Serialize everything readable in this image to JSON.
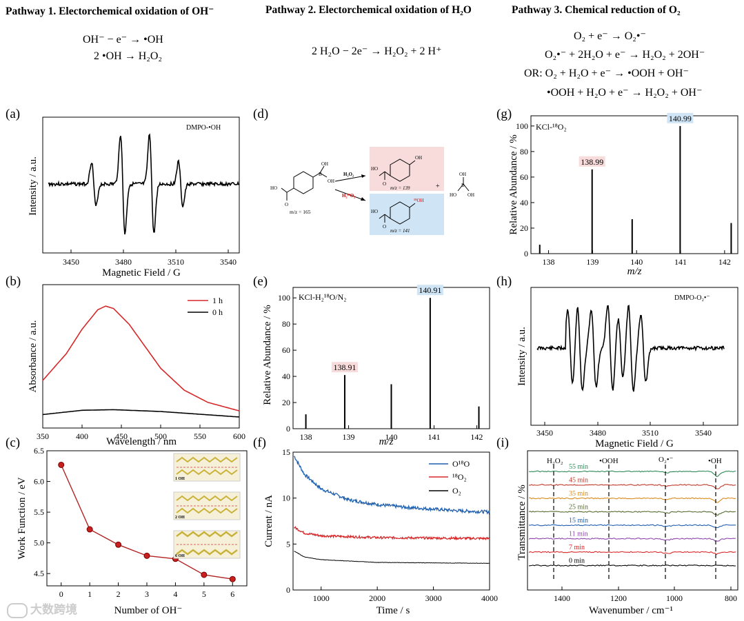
{
  "pathways": [
    {
      "title": "Pathway 1. Electorchemical oxidation of OH⁻",
      "equations": [
        "OH⁻ − e⁻ → •OH",
        "2 •OH → H₂O₂"
      ]
    },
    {
      "title": "Pathway 2. Electorchemical oxidation of H₂O",
      "equations": [
        "2 H₂O − 2e⁻ → H₂O₂ + 2 H⁺"
      ]
    },
    {
      "title": "Pathway 3. Chemical reduction of O₂",
      "equations": [
        "O₂ + e⁻ → O₂•⁻",
        "O₂•⁻ + 2H₂O + e⁻ → H₂O₂ + 2OH⁻",
        "OR: O₂ + H₂O + e⁻ → •OOH + OH⁻",
        "•OOH + H₂O + e⁻ → H₂O₂ + OH⁻"
      ]
    }
  ],
  "panels": {
    "a": {
      "label": "(a)",
      "xlabel": "Magnetic Field / G",
      "ylabel": "Intensity / a.u.",
      "annotation": "DMPO-•OH",
      "xticks": [
        "3450",
        "3480",
        "3510",
        "3540"
      ]
    },
    "b": {
      "label": "(b)",
      "xlabel": "Wavelength / nm",
      "ylabel": "Absorbance / a.u.",
      "legend": [
        "1 h",
        "0 h"
      ],
      "xticks": [
        "350",
        "400",
        "450",
        "500",
        "550",
        "600"
      ]
    },
    "c": {
      "label": "(c)",
      "xlabel": "Number of OH⁻",
      "ylabel": "Work Function / eV",
      "inset_labels": [
        "1 OH",
        "2 OH",
        "6 OH"
      ],
      "xticks": [
        "0",
        "1",
        "2",
        "3",
        "4",
        "5",
        "6"
      ],
      "yticks": [
        "4.5",
        "5.0",
        "5.5",
        "6.0",
        "6.5"
      ]
    },
    "d": {
      "label": "(d)",
      "reactant_mz": "m/z = 165",
      "reagent1": "H₂O₂",
      "reagent2": "H₂¹⁸O₂",
      "product1_mz": "m/z = 139",
      "product2_mz": "m/z = 141",
      "plus": "+",
      "atoms": {
        "OH": "OH",
        "HO": "HO",
        "O": "O",
        "B": "B",
        "O18": "¹⁸OH"
      }
    },
    "e": {
      "label": "(e)",
      "xlabel": "m/z",
      "ylabel": "Relative Abundance / %",
      "annotation": "KCl-H₂¹⁸O/N₂",
      "peak_labels": [
        "138.91",
        "140.91"
      ],
      "xticks": [
        "138",
        "139",
        "140",
        "141",
        "142"
      ],
      "yticks": [
        "0",
        "20",
        "40",
        "60",
        "80",
        "100"
      ]
    },
    "f": {
      "label": "(f)",
      "xlabel": "Time / s",
      "ylabel": "Current / nA",
      "legend": [
        "O¹⁸O",
        "¹⁸O₂",
        "O₂"
      ],
      "xticks": [
        "1000",
        "2000",
        "3000",
        "4000"
      ],
      "yticks": [
        "0",
        "5",
        "10",
        "15"
      ]
    },
    "g": {
      "label": "(g)",
      "xlabel": "m/z",
      "ylabel": "Relative Abundance / %",
      "annotation": "KCl-¹⁸O₂",
      "peak_labels": [
        "138.99",
        "140.99"
      ],
      "xticks": [
        "138",
        "139",
        "140",
        "141",
        "142"
      ],
      "yticks": [
        "0",
        "20",
        "40",
        "60",
        "80",
        "100"
      ]
    },
    "h": {
      "label": "(h)",
      "xlabel": "Magnetic Field / G",
      "ylabel": "Intensity / a.u.",
      "annotation": "DMPO-O₂•⁻",
      "xticks": [
        "3450",
        "3480",
        "3510",
        "3540"
      ]
    },
    "i": {
      "label": "(i)",
      "xlabel": "Wavenumber / cm⁻¹",
      "ylabel": "Transmittance / %",
      "band_labels": [
        "H₂O₂",
        "•OOH",
        "O₂•⁻",
        "•OH"
      ],
      "times": [
        "55 min",
        "45 min",
        "35 min",
        "25 min",
        "15 min",
        "11 min",
        "7 min",
        "0 min"
      ],
      "xticks": [
        "1400",
        "1200",
        "1000",
        "800"
      ]
    }
  },
  "watermark": "大数跨境",
  "colors": {
    "red": "#d62728",
    "blue": "#1f5fad",
    "black": "#000000",
    "pink_box": "#f8dcdc",
    "blue_box": "#cfe5f5"
  },
  "chart_data": [
    {
      "id": "c",
      "type": "line",
      "title": "",
      "xlabel": "Number of OH⁻",
      "ylabel": "Work Function / eV",
      "x": [
        0,
        1,
        2,
        3,
        4,
        5,
        6
      ],
      "values": [
        6.27,
        5.22,
        4.97,
        4.79,
        4.74,
        4.48,
        4.41
      ],
      "xlim": [
        -0.5,
        6.5
      ],
      "ylim": [
        4.3,
        6.5
      ]
    },
    {
      "id": "e",
      "type": "bar",
      "title": "",
      "xlabel": "m/z",
      "ylabel": "Relative Abundance / %",
      "x": [
        138.0,
        138.91,
        140.0,
        140.91,
        142.05
      ],
      "values": [
        11,
        41,
        34,
        100,
        17
      ],
      "xlim": [
        137.7,
        142.3
      ],
      "ylim": [
        0,
        108
      ]
    },
    {
      "id": "g",
      "type": "bar",
      "title": "",
      "xlabel": "m/z",
      "ylabel": "Relative Abundance / %",
      "x": [
        137.8,
        138.99,
        139.9,
        140.99,
        142.15
      ],
      "values": [
        7,
        66,
        27,
        100,
        24
      ],
      "xlim": [
        137.6,
        142.3
      ],
      "ylim": [
        0,
        108
      ]
    },
    {
      "id": "b",
      "type": "line",
      "xlabel": "Wavelength / nm",
      "ylabel": "Absorbance / a.u.",
      "xlim": [
        350,
        600
      ],
      "series": [
        {
          "name": "1 h",
          "x": [
            350,
            380,
            400,
            420,
            430,
            440,
            460,
            480,
            500,
            530,
            560,
            600
          ],
          "values": [
            0.3,
            0.52,
            0.72,
            0.88,
            0.91,
            0.89,
            0.76,
            0.58,
            0.4,
            0.22,
            0.12,
            0.05
          ]
        },
        {
          "name": "0 h",
          "x": [
            350,
            400,
            440,
            500,
            600
          ],
          "values": [
            0.02,
            0.055,
            0.06,
            0.045,
            0.0
          ]
        }
      ]
    },
    {
      "id": "f",
      "type": "line",
      "xlabel": "Time / s",
      "ylabel": "Current / nA",
      "xlim": [
        500,
        4000
      ],
      "ylim": [
        0,
        15
      ],
      "series": [
        {
          "name": "O¹⁸O",
          "x": [
            500,
            700,
            1000,
            1500,
            2000,
            2500,
            3000,
            3500,
            4000
          ],
          "values": [
            14.8,
            12.6,
            11.0,
            9.8,
            9.3,
            9.0,
            8.8,
            8.6,
            8.5
          ]
        },
        {
          "name": "¹⁸O₂",
          "x": [
            500,
            700,
            1000,
            2000,
            3000,
            4000
          ],
          "values": [
            6.9,
            6.2,
            5.9,
            5.7,
            5.65,
            5.6
          ]
        },
        {
          "name": "O₂",
          "x": [
            500,
            700,
            1000,
            2000,
            3000,
            4000
          ],
          "values": [
            4.3,
            3.6,
            3.3,
            3.0,
            2.95,
            2.9
          ]
        }
      ]
    }
  ]
}
